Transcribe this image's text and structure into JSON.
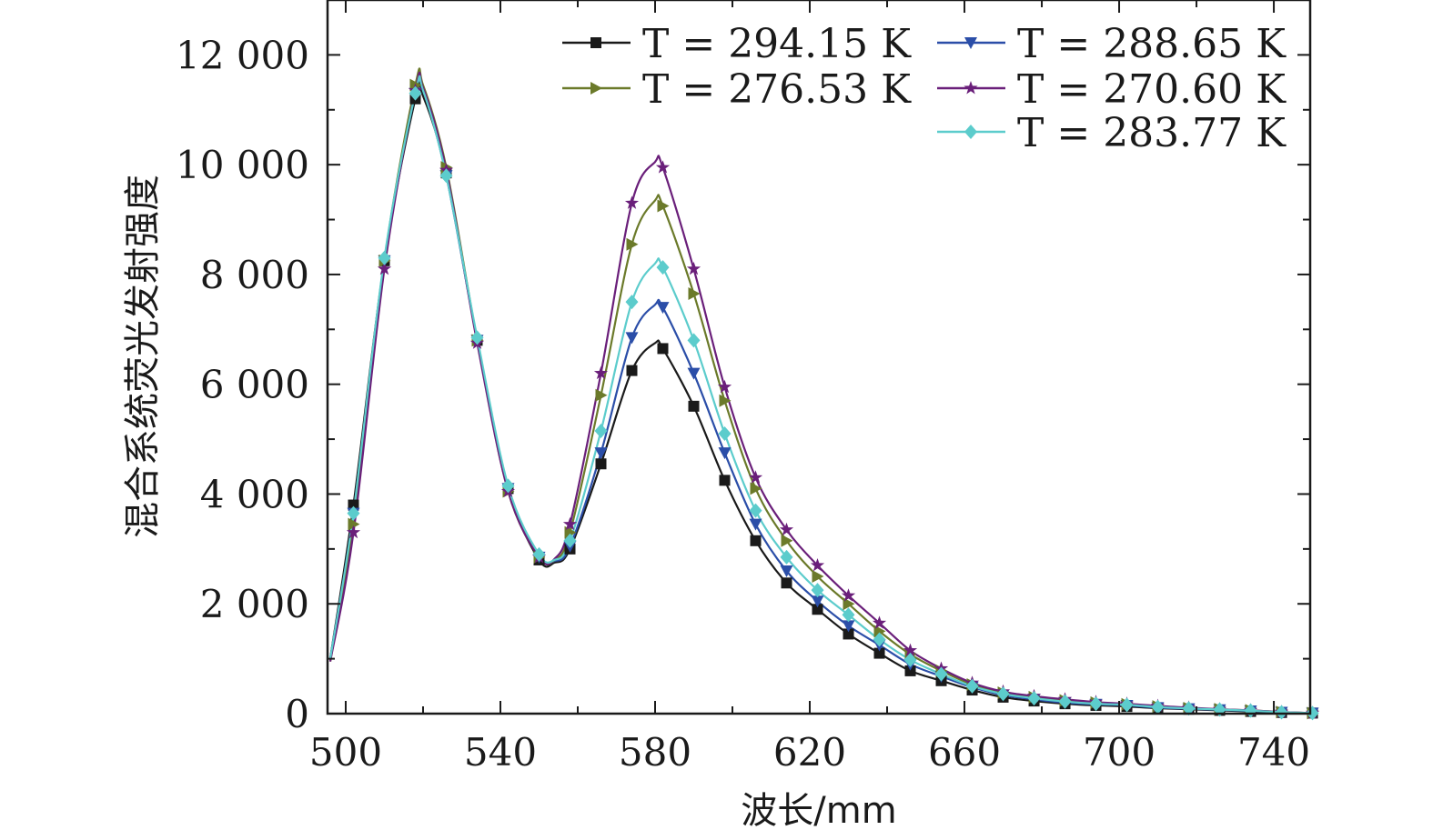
{
  "chart_data": {
    "type": "line",
    "title": "",
    "xlabel": "波长/mm",
    "ylabel": "混合系统荧光发射强度",
    "xlim": [
      495.3,
      749.4
    ],
    "ylim": [
      0,
      13000
    ],
    "x_ticks": [
      500,
      540,
      580,
      620,
      660,
      700,
      740
    ],
    "x_tick_labels": [
      "500",
      "540",
      "580",
      "620",
      "660",
      "700",
      "740"
    ],
    "y_ticks": [
      0,
      2000,
      4000,
      6000,
      8000,
      10000,
      12000
    ],
    "y_tick_labels": [
      "0",
      "2 000",
      "4 000",
      "6 000",
      "8 000",
      "10 000",
      "12 000"
    ],
    "grid": false,
    "legend_placement": "top-right",
    "x": [
      496,
      502,
      510,
      518,
      520,
      526,
      534,
      542,
      550,
      554,
      558,
      566,
      574,
      580,
      582,
      590,
      598,
      606,
      614,
      622,
      630,
      638,
      646,
      654,
      662,
      670,
      678,
      686,
      694,
      702,
      710,
      718,
      726,
      734,
      742,
      750
    ],
    "marker_x": [
      502,
      510,
      518,
      526,
      534,
      542,
      550,
      558,
      566,
      574,
      582,
      590,
      598,
      606,
      614,
      622,
      630,
      638,
      646,
      654,
      662,
      670,
      678,
      686,
      694,
      702,
      710,
      718,
      726,
      734,
      742,
      750
    ],
    "series": [
      {
        "name": "T = 294.15 K",
        "color": "#1a1a1a",
        "marker": "square",
        "values": [
          1000,
          3800,
          8250,
          11200,
          11250,
          9850,
          6800,
          4100,
          2800,
          2750,
          3000,
          4550,
          6250,
          6750,
          6650,
          5600,
          4250,
          3150,
          2380,
          1900,
          1450,
          1100,
          780,
          600,
          430,
          300,
          230,
          180,
          150,
          130,
          100,
          80,
          60,
          40,
          20,
          10
        ]
      },
      {
        "name": "T = 288.65 K",
        "color": "#2b4ea8",
        "marker": "triangle-down",
        "values": [
          1000,
          3650,
          8250,
          11300,
          11350,
          9800,
          6800,
          4100,
          2850,
          2780,
          3050,
          4750,
          6850,
          7450,
          7400,
          6200,
          4750,
          3450,
          2600,
          2050,
          1600,
          1250,
          900,
          680,
          480,
          340,
          260,
          200,
          170,
          150,
          110,
          90,
          70,
          50,
          25,
          10
        ]
      },
      {
        "name": "T = 276.53 K",
        "color": "#6b7a2a",
        "marker": "triangle-right",
        "values": [
          950,
          3450,
          8250,
          11450,
          11450,
          9950,
          6800,
          4050,
          2850,
          2800,
          3300,
          5800,
          8550,
          9350,
          9250,
          7650,
          5700,
          4100,
          3150,
          2500,
          2000,
          1500,
          1080,
          780,
          530,
          380,
          300,
          240,
          200,
          170,
          130,
          100,
          80,
          60,
          30,
          10
        ]
      },
      {
        "name": "T = 270.60 K",
        "color": "#6a1f7a",
        "marker": "star",
        "values": [
          950,
          3300,
          8100,
          11350,
          11400,
          9900,
          6750,
          4050,
          2850,
          2820,
          3450,
          6200,
          9300,
          10050,
          9950,
          8100,
          5950,
          4300,
          3350,
          2700,
          2150,
          1650,
          1150,
          820,
          560,
          400,
          320,
          260,
          210,
          180,
          140,
          110,
          80,
          60,
          30,
          10
        ]
      },
      {
        "name": "T = 283.77 K",
        "color": "#5ccccc",
        "marker": "diamond",
        "values": [
          1000,
          3650,
          8300,
          11300,
          11350,
          9800,
          6850,
          4150,
          2900,
          2800,
          3150,
          5150,
          7500,
          8200,
          8130,
          6800,
          5100,
          3700,
          2850,
          2250,
          1800,
          1350,
          980,
          720,
          500,
          360,
          280,
          220,
          180,
          160,
          120,
          95,
          75,
          55,
          25,
          10
        ]
      }
    ]
  }
}
